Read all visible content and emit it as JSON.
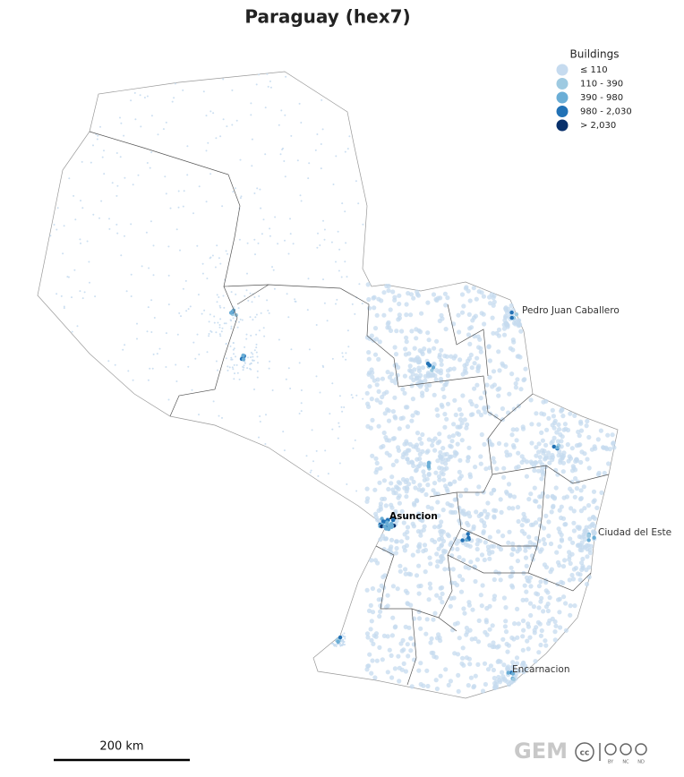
{
  "title": "Paraguay (hex7)",
  "legend": {
    "title": "Buildings",
    "items": [
      {
        "label": "≤ 110",
        "color": "#c6dbef"
      },
      {
        "label": "110 - 390",
        "color": "#9ecae1"
      },
      {
        "label": "390 - 980",
        "color": "#6baed6"
      },
      {
        "label": "980 - 2,030",
        "color": "#2171b5"
      },
      {
        "label": "> 2,030",
        "color": "#08306b"
      }
    ]
  },
  "cities": [
    "Pedro Juan Caballero",
    "Asuncion",
    "Ciudad del Este",
    "Encarnacion"
  ],
  "scale_bar": "200 km",
  "logo": {
    "name": "GEM",
    "license": [
      "BY",
      "NC",
      "ND"
    ]
  }
}
